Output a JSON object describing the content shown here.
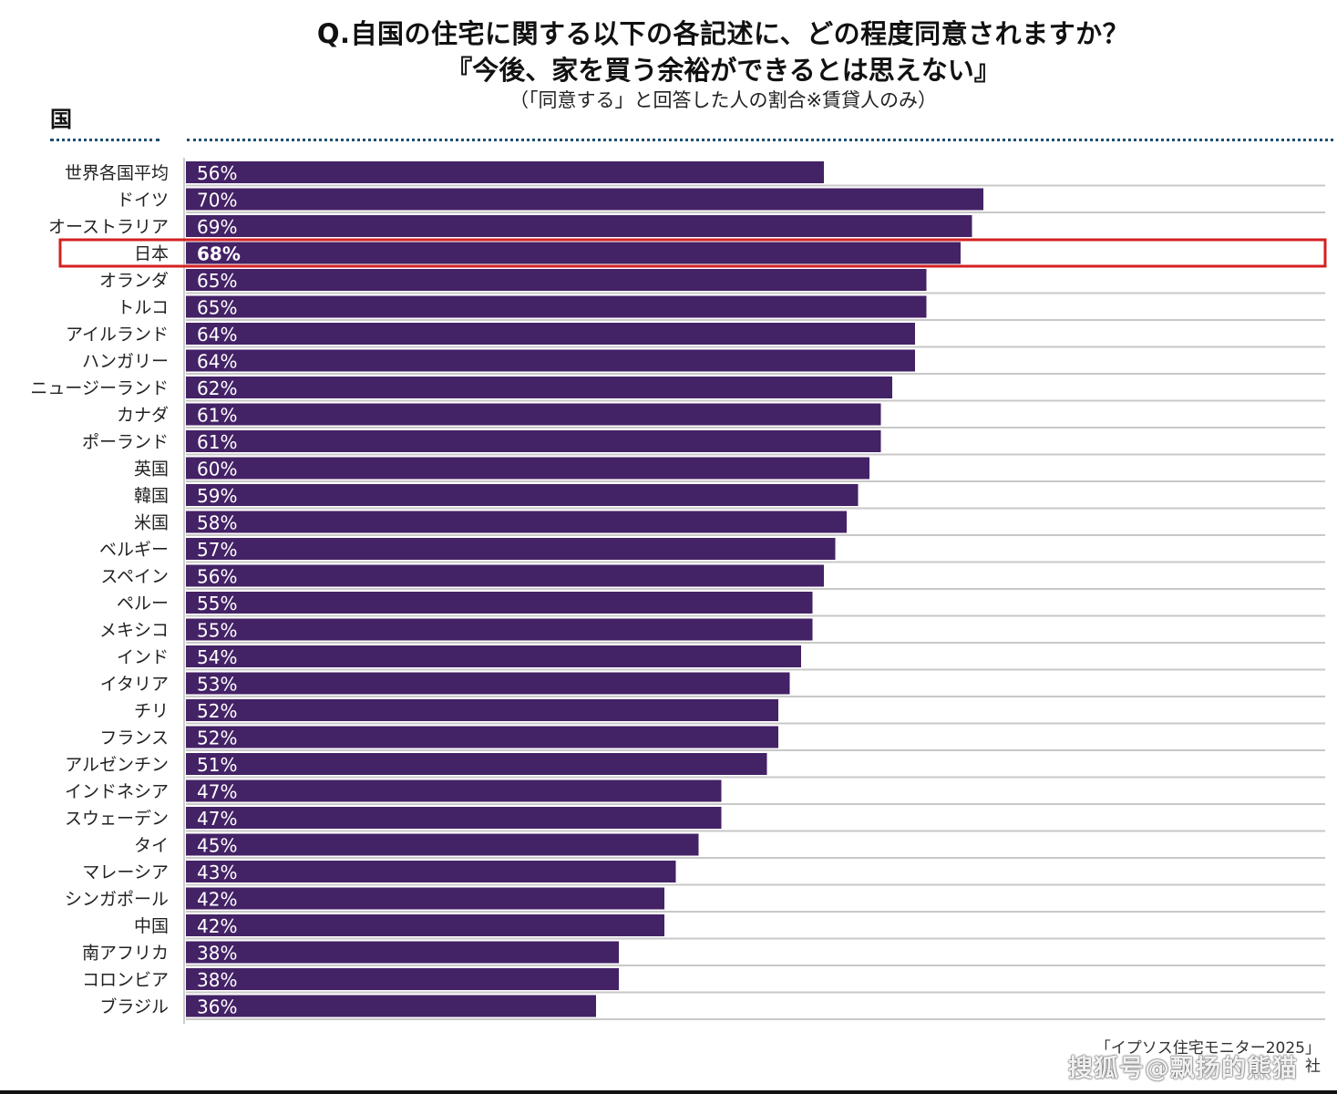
{
  "title": {
    "line1": "Q.自国の住宅に関する以下の各記述に、どの程度同意されますか？",
    "line2": "『今後、家を買う余裕ができるとは思えない』",
    "line3": "（「同意する」と回答した人の割合※賃貸人のみ）"
  },
  "column_header": "国",
  "source": {
    "line1": "「イプソス住宅モニター2025」",
    "line2": "社"
  },
  "watermark": "搜狐号@飘扬的熊猫",
  "colors": {
    "bar": "#442266",
    "highlight": "#d42020",
    "gridline": "#c8c8c8"
  },
  "chart_data": {
    "type": "bar",
    "orientation": "horizontal",
    "categories": [
      "世界各国平均",
      "ドイツ",
      "オーストラリア",
      "日本",
      "オランダ",
      "トルコ",
      "アイルランド",
      "ハンガリー",
      "ニュージーランド",
      "カナダ",
      "ポーランド",
      "英国",
      "韓国",
      "米国",
      "ベルギー",
      "スペイン",
      "ペルー",
      "メキシコ",
      "インド",
      "イタリア",
      "チリ",
      "フランス",
      "アルゼンチン",
      "インドネシア",
      "スウェーデン",
      "タイ",
      "マレーシア",
      "シンガポール",
      "中国",
      "南アフリカ",
      "コロンビア",
      "ブラジル"
    ],
    "values": [
      56,
      70,
      69,
      68,
      65,
      65,
      64,
      64,
      62,
      61,
      61,
      60,
      59,
      58,
      57,
      56,
      55,
      55,
      54,
      53,
      52,
      52,
      51,
      47,
      47,
      45,
      43,
      42,
      42,
      38,
      38,
      36
    ],
    "value_labels": [
      "56%",
      "70%",
      "69%",
      "68%",
      "65%",
      "65%",
      "64%",
      "64%",
      "62%",
      "61%",
      "61%",
      "60%",
      "59%",
      "58%",
      "57%",
      "56%",
      "55%",
      "55%",
      "54%",
      "53%",
      "52%",
      "52%",
      "51%",
      "47%",
      "47%",
      "45%",
      "43%",
      "42%",
      "42%",
      "38%",
      "38%",
      "36%"
    ],
    "highlighted": "日本",
    "xlim": [
      0,
      100
    ],
    "unit": "%",
    "grid": true
  }
}
